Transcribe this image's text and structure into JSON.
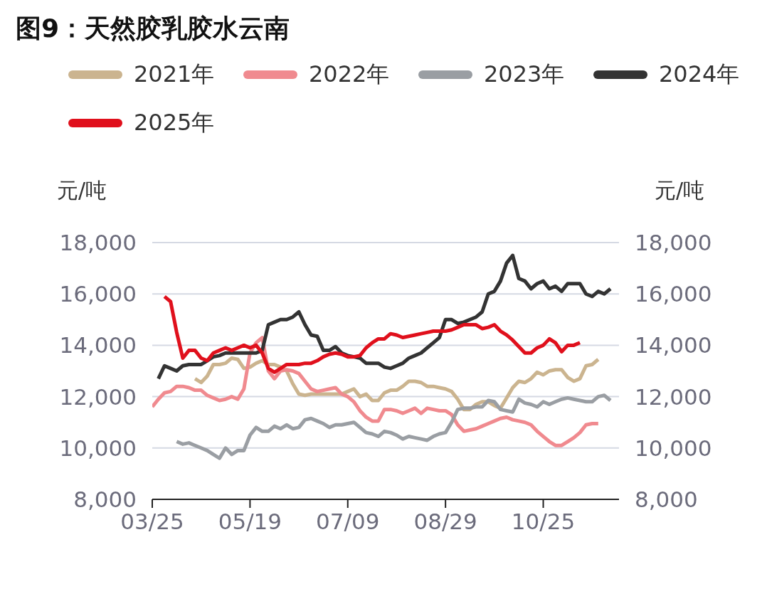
{
  "chart_data": {
    "type": "line",
    "title": "图9：天然胶乳胶水云南",
    "ylabel": "元/吨",
    "y2label": "元/吨",
    "categories": [
      "03/25",
      null,
      null,
      null,
      null,
      null,
      null,
      null,
      null,
      null,
      null,
      null,
      null,
      null,
      null,
      null,
      "05/19",
      null,
      null,
      null,
      null,
      null,
      null,
      null,
      null,
      null,
      null,
      null,
      null,
      null,
      null,
      null,
      "07/09",
      null,
      null,
      null,
      null,
      null,
      null,
      null,
      null,
      null,
      null,
      null,
      null,
      null,
      null,
      null,
      "08/29",
      null,
      null,
      null,
      null,
      null,
      null,
      null,
      null,
      null,
      null,
      null,
      null,
      null,
      null,
      null,
      "10/25",
      null,
      null,
      null,
      null,
      null,
      null,
      null,
      null,
      null,
      null,
      null,
      null
    ],
    "series": [
      {
        "name": "2021年",
        "color": "#cbb48f",
        "values": [
          null,
          null,
          null,
          null,
          null,
          null,
          null,
          12700,
          12550,
          12800,
          13250,
          13250,
          13300,
          13500,
          13450,
          13100,
          13150,
          13300,
          13400,
          13250,
          13250,
          13150,
          13000,
          12500,
          12100,
          12050,
          12100,
          12100,
          12100,
          12100,
          12100,
          12100,
          12200,
          12300,
          12000,
          12100,
          11850,
          11850,
          12150,
          12250,
          12250,
          12400,
          12600,
          12600,
          12550,
          12400,
          12400,
          12350,
          12300,
          12200,
          11900,
          11500,
          11500,
          11700,
          11800,
          11800,
          11650,
          11550,
          11950,
          12350,
          12600,
          12550,
          12700,
          12950,
          12850,
          13000,
          13050,
          13050,
          12750,
          12600,
          12700,
          13200,
          13250,
          13450,
          null,
          null,
          null
        ]
      },
      {
        "name": "2022年",
        "color": "#f08a8f",
        "values": [
          11600,
          11900,
          12150,
          12200,
          12400,
          12400,
          12350,
          12250,
          12250,
          12050,
          11950,
          11850,
          11900,
          12000,
          11900,
          12300,
          13700,
          14100,
          14300,
          13000,
          12700,
          13000,
          13050,
          13000,
          12900,
          12600,
          12300,
          12200,
          12250,
          12300,
          12350,
          12100,
          12000,
          11800,
          11450,
          11200,
          11050,
          11050,
          11500,
          11500,
          11450,
          11350,
          11450,
          11550,
          11350,
          11550,
          11500,
          11450,
          11450,
          11300,
          10900,
          10650,
          10700,
          10750,
          10850,
          10950,
          11050,
          11150,
          11200,
          11100,
          11050,
          11000,
          10900,
          10650,
          10450,
          10250,
          10100,
          10100,
          10250,
          10400,
          10600,
          10900,
          10950,
          10950,
          null,
          null,
          null
        ]
      },
      {
        "name": "2023年",
        "color": "#9a9ea3",
        "values": [
          null,
          null,
          null,
          null,
          10250,
          10150,
          10200,
          10100,
          10000,
          9900,
          9750,
          9600,
          10000,
          9750,
          9900,
          9900,
          10500,
          10800,
          10650,
          10650,
          10850,
          10750,
          10900,
          10750,
          10800,
          11100,
          11150,
          11050,
          10950,
          10800,
          10900,
          10900,
          10950,
          11000,
          10800,
          10600,
          10550,
          10450,
          10650,
          10600,
          10500,
          10350,
          10450,
          10400,
          10350,
          10300,
          10450,
          10550,
          10600,
          11000,
          11500,
          11550,
          11550,
          11600,
          11600,
          11850,
          11800,
          11500,
          11450,
          11400,
          11900,
          11750,
          11700,
          11600,
          11800,
          11700,
          11800,
          11900,
          11950,
          11900,
          11850,
          11800,
          11800,
          12000,
          12050,
          11850,
          null
        ]
      },
      {
        "name": "2024年",
        "color": "#333333",
        "values": [
          null,
          12700,
          13200,
          13100,
          13000,
          13200,
          13250,
          13250,
          13250,
          13400,
          13550,
          13600,
          13700,
          13700,
          13700,
          13700,
          13700,
          13700,
          13800,
          14800,
          14900,
          15000,
          15000,
          15100,
          15300,
          14800,
          14400,
          14350,
          13800,
          13800,
          13950,
          13700,
          13600,
          13550,
          13500,
          13300,
          13300,
          13300,
          13150,
          13100,
          13200,
          13300,
          13500,
          13600,
          13700,
          13900,
          14100,
          14300,
          15000,
          15000,
          14850,
          14900,
          15000,
          15100,
          15300,
          16000,
          16100,
          16500,
          17200,
          17500,
          16600,
          16500,
          16200,
          16400,
          16500,
          16200,
          16300,
          16100,
          16400,
          16400,
          16400,
          16000,
          15900,
          16100,
          16000,
          16200,
          null
        ]
      },
      {
        "name": "2025年",
        "color": "#e0101c",
        "values": [
          null,
          null,
          15900,
          15700,
          14500,
          13500,
          13800,
          13800,
          13500,
          13400,
          13700,
          13800,
          13900,
          13800,
          13900,
          14000,
          13900,
          14000,
          13700,
          13100,
          12950,
          13100,
          13250,
          13250,
          13250,
          13300,
          13300,
          13400,
          13550,
          13650,
          13700,
          13650,
          13550,
          13550,
          13600,
          13900,
          14100,
          14250,
          14250,
          14450,
          14400,
          14300,
          14350,
          14400,
          14450,
          14500,
          14550,
          14550,
          14550,
          14600,
          14700,
          14800,
          14800,
          14800,
          14650,
          14700,
          14800,
          14550,
          14400,
          14200,
          13950,
          13700,
          13700,
          13900,
          14000,
          14250,
          14100,
          13750,
          14000,
          14000,
          14100,
          null,
          null,
          null,
          null,
          null,
          null
        ]
      }
    ],
    "ylim": [
      8000,
      18000
    ],
    "yticks": [
      {
        "value": 8000,
        "label": "8,000"
      },
      {
        "value": 10000,
        "label": "10,000"
      },
      {
        "value": 12000,
        "label": "12,000"
      },
      {
        "value": 14000,
        "label": "14,000"
      },
      {
        "value": 16000,
        "label": "16,000"
      },
      {
        "value": 18000,
        "label": "18,000"
      }
    ],
    "y2lim": [
      8000,
      18000
    ],
    "y2ticks": [
      {
        "value": 8000,
        "label": "8,000"
      },
      {
        "value": 10000,
        "label": "10,000"
      },
      {
        "value": 12000,
        "label": "12,000"
      },
      {
        "value": 14000,
        "label": "14,000"
      },
      {
        "value": 16000,
        "label": "16,000"
      },
      {
        "value": 18000,
        "label": "18,000"
      }
    ],
    "grid": "y",
    "legend": "top left",
    "marker": "none",
    "line_style": "solid"
  }
}
